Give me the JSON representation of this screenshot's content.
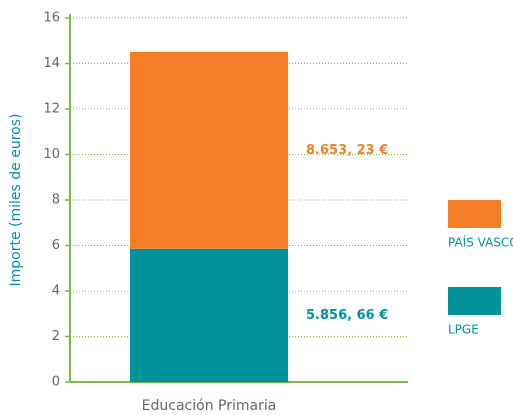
{
  "chart_data": {
    "type": "stacked_bar",
    "y_label": "Importe (miles de euros)",
    "categories": [
      "Educación Primaria"
    ],
    "series": [
      {
        "name": "LPGE",
        "color": "#00929a",
        "values": [
          5.85666
        ],
        "value_labels": [
          "5.856, 66 €"
        ]
      },
      {
        "name": "PAÍS VASCO",
        "color": "#f47e26",
        "values": [
          8.65323
        ],
        "value_labels": [
          "8.653, 23 €"
        ]
      }
    ],
    "ylim": [
      0,
      16
    ],
    "yticks": [
      0,
      2,
      4,
      6,
      8,
      10,
      12,
      14,
      16
    ],
    "grid": true
  }
}
